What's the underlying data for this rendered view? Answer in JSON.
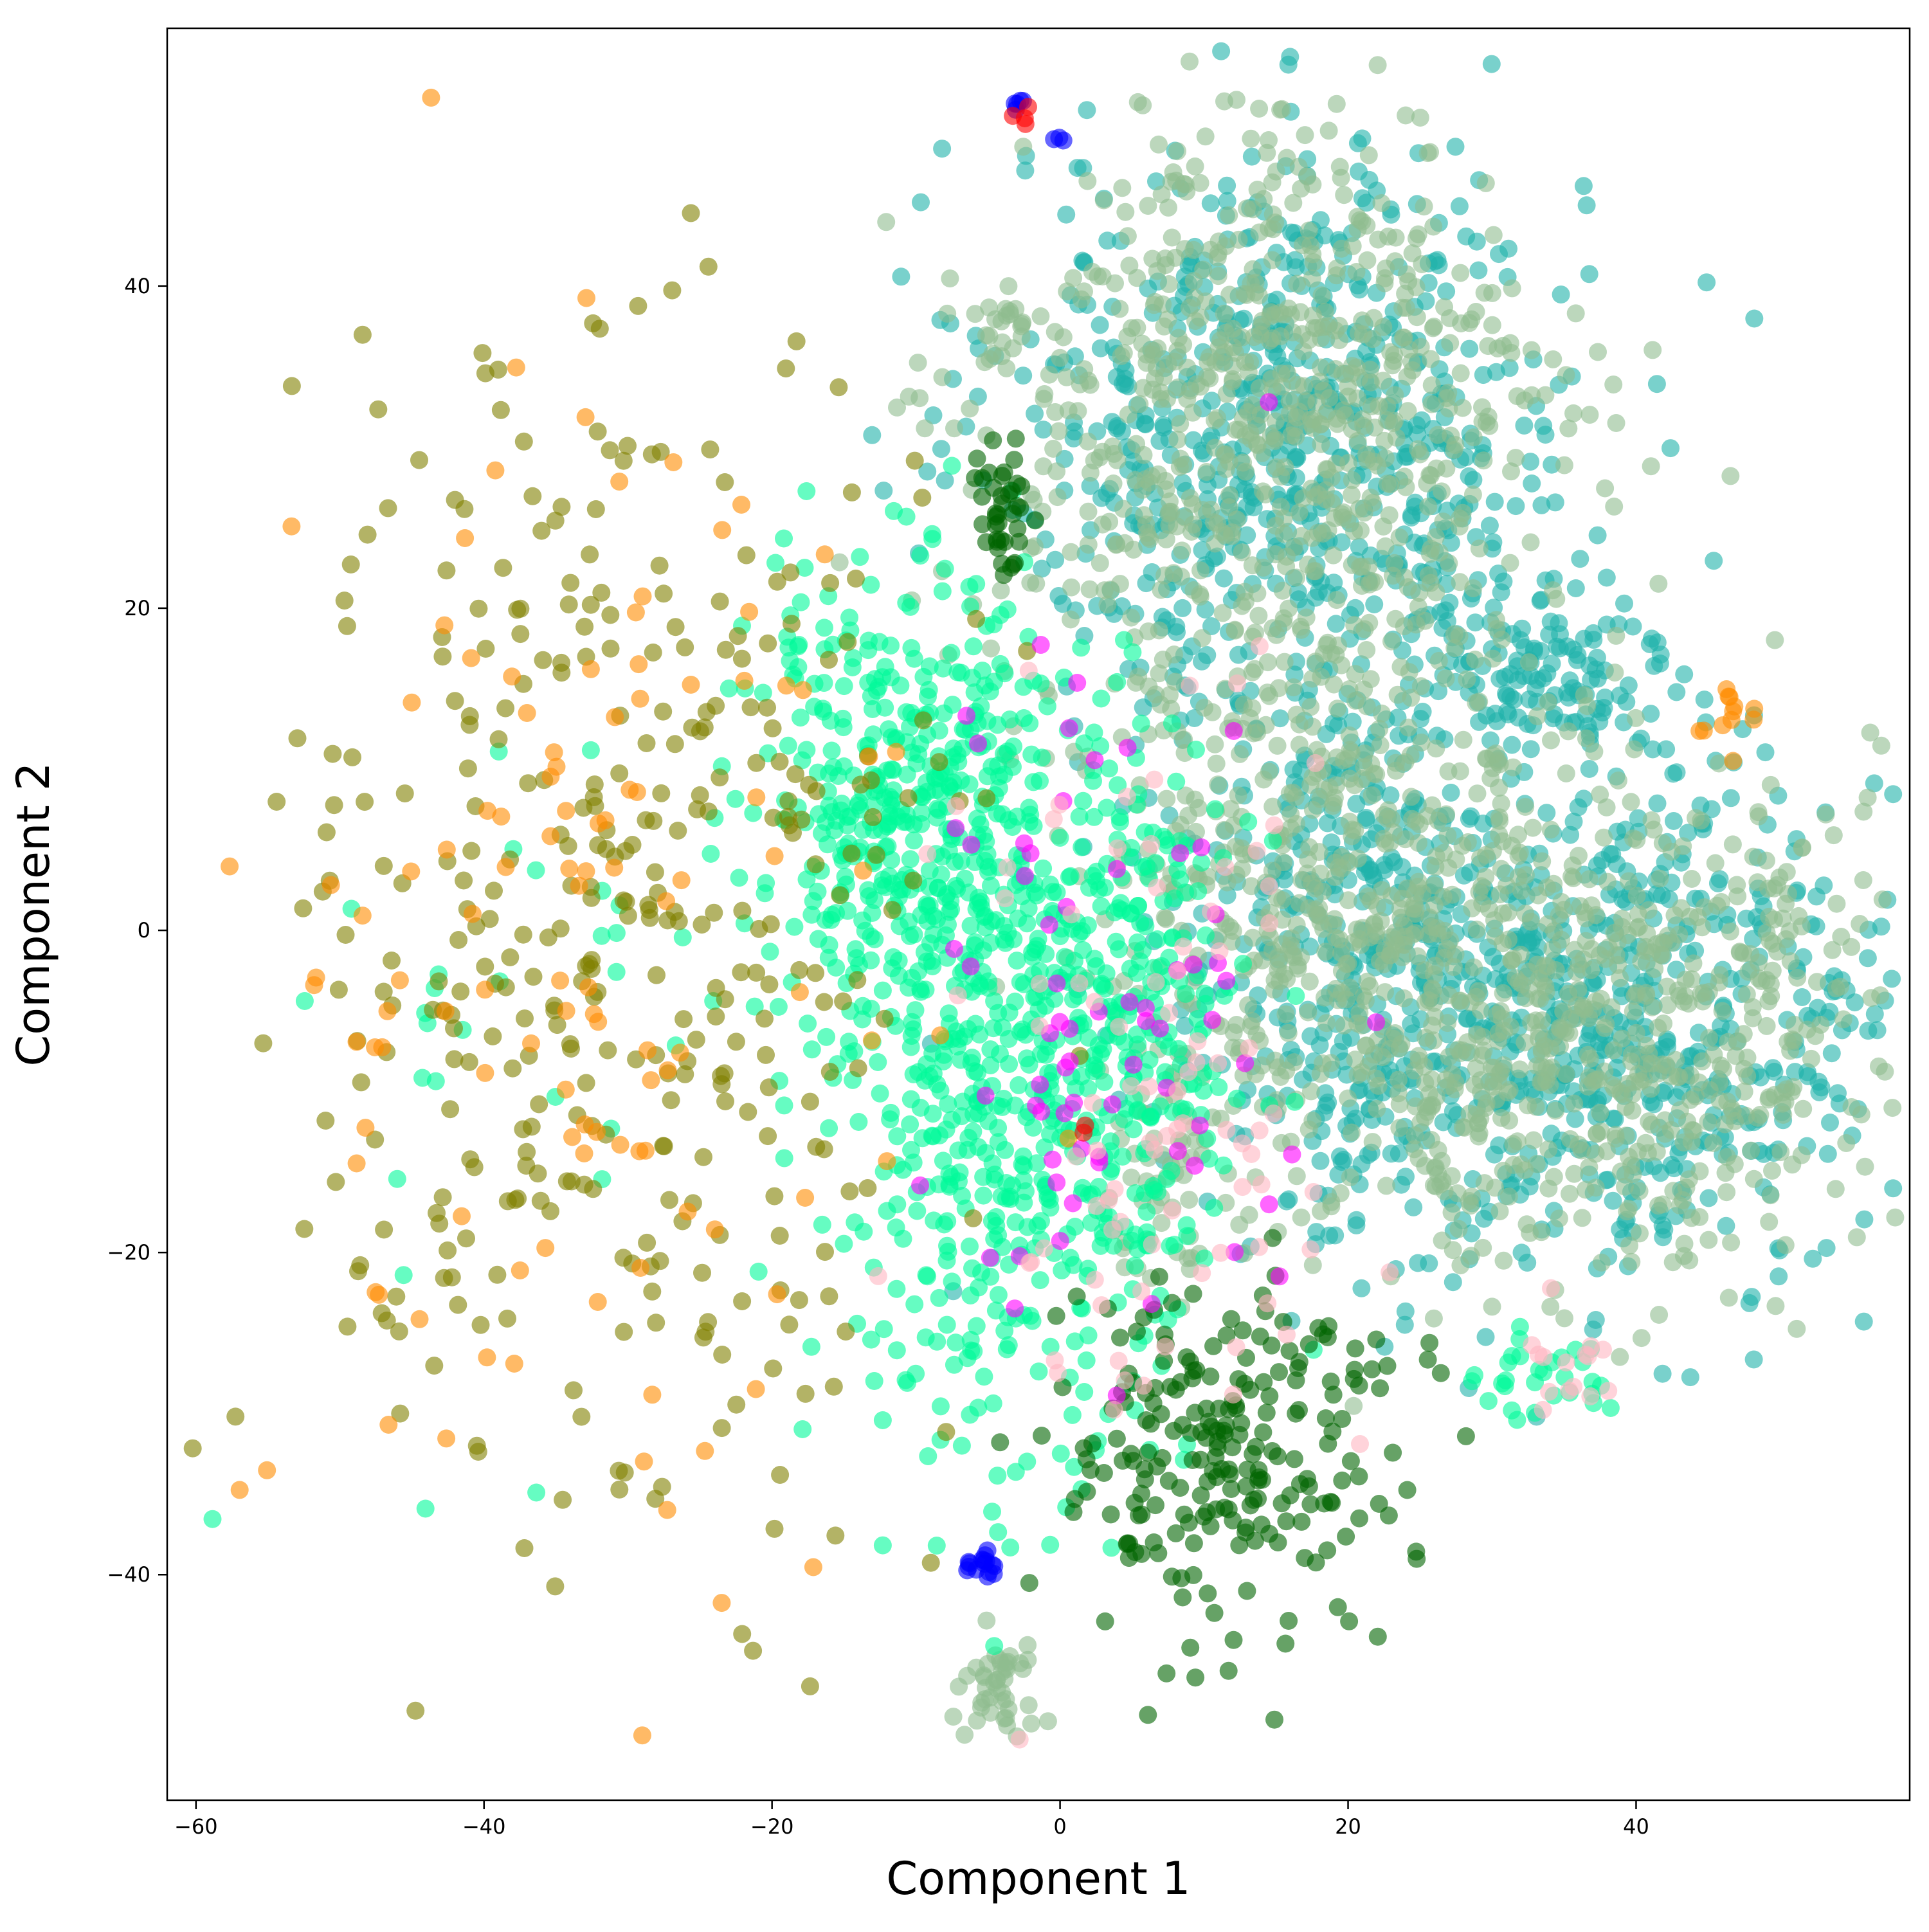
{
  "chart_data": {
    "type": "scatter",
    "title": "",
    "xlabel": "Component 1",
    "ylabel": "Component 2",
    "xlim": [
      -62,
      59
    ],
    "ylim": [
      -54,
      56
    ],
    "xticks": [
      -60,
      -40,
      -20,
      0,
      20,
      40
    ],
    "yticks": [
      -40,
      -20,
      0,
      20,
      40
    ],
    "xtick_labels": [
      "−60",
      "−40",
      "−20",
      "0",
      "20",
      "40"
    ],
    "ytick_labels": [
      "−40",
      "−20",
      "0",
      "20",
      "40"
    ],
    "grid": false,
    "legend": "none",
    "marker_opacity": 0.6,
    "series": [
      {
        "color": "#20b2aa",
        "clusters": [
          {
            "cx": 16,
            "cy": 31,
            "sx": 10,
            "sy": 9,
            "n": 700
          },
          {
            "cx": 38,
            "cy": -6,
            "sx": 10,
            "sy": 8,
            "n": 650
          },
          {
            "cx": 20,
            "cy": 0,
            "sx": 7,
            "sy": 8,
            "n": 350
          },
          {
            "cx": 33,
            "cy": 16,
            "sx": 5,
            "sy": 3,
            "n": 120
          }
        ]
      },
      {
        "color": "#8fbc8f",
        "clusters": [
          {
            "cx": 15,
            "cy": 32,
            "sx": 10,
            "sy": 9,
            "n": 700
          },
          {
            "cx": 37,
            "cy": -6,
            "sx": 10,
            "sy": 8,
            "n": 650
          },
          {
            "cx": 19,
            "cy": 4,
            "sx": 8,
            "sy": 8,
            "n": 450
          },
          {
            "cx": -4,
            "cy": -47,
            "sx": 1.5,
            "sy": 1.5,
            "n": 45
          },
          {
            "cx": -4,
            "cy": 38,
            "sx": 1,
            "sy": 1,
            "n": 18
          },
          {
            "cx": 8,
            "cy": -14,
            "sx": 2,
            "sy": 4,
            "n": 60
          }
        ]
      },
      {
        "color": "#00fa9a",
        "clusters": [
          {
            "cx": -10,
            "cy": 8,
            "sx": 6,
            "sy": 7,
            "n": 420
          },
          {
            "cx": -4,
            "cy": -12,
            "sx": 6,
            "sy": 11,
            "n": 460
          },
          {
            "cx": 5,
            "cy": -5,
            "sx": 4,
            "sy": 8,
            "n": 200
          },
          {
            "cx": 34,
            "cy": -28,
            "sx": 2.5,
            "sy": 1.5,
            "n": 30
          },
          {
            "cx": -38,
            "cy": -8,
            "sx": 8,
            "sy": 12,
            "n": 30
          }
        ]
      },
      {
        "color": "#808000",
        "clusters": [
          {
            "cx": -31,
            "cy": 0,
            "sx": 11,
            "sy": 19,
            "n": 380
          }
        ]
      },
      {
        "color": "#ff8c00",
        "clusters": [
          {
            "cx": -33,
            "cy": 0,
            "sx": 12,
            "sy": 19,
            "n": 120
          },
          {
            "cx": 47,
            "cy": 14,
            "sx": 2,
            "sy": 2.5,
            "n": 12
          }
        ]
      },
      {
        "color": "#006400",
        "clusters": [
          {
            "cx": 11,
            "cy": -33,
            "sx": 6,
            "sy": 6,
            "n": 230
          },
          {
            "cx": -4,
            "cy": 26,
            "sx": 1,
            "sy": 2,
            "n": 40
          }
        ]
      },
      {
        "color": "#ff00ff",
        "clusters": [
          {
            "cx": 4,
            "cy": -6,
            "sx": 7,
            "sy": 11,
            "n": 70
          }
        ]
      },
      {
        "color": "#ffb6c1",
        "clusters": [
          {
            "cx": 6,
            "cy": -12,
            "sx": 7,
            "sy": 12,
            "n": 90
          },
          {
            "cx": 35,
            "cy": -27,
            "sx": 2,
            "sy": 1.5,
            "n": 15
          }
        ]
      },
      {
        "color": "#0000ff",
        "clusters": [
          {
            "cx": -5.5,
            "cy": -39.5,
            "sx": 0.8,
            "sy": 0.6,
            "n": 16
          },
          {
            "cx": -3,
            "cy": 51,
            "sx": 0.3,
            "sy": 0.3,
            "n": 5
          },
          {
            "cx": 0,
            "cy": 49,
            "sx": 0.2,
            "sy": 0.1,
            "n": 3
          }
        ]
      },
      {
        "color": "#ff0000",
        "clusters": [
          {
            "cx": -2.5,
            "cy": 50.5,
            "sx": 0.3,
            "sy": 0.3,
            "n": 4
          },
          {
            "cx": 1,
            "cy": -13,
            "sx": 0.5,
            "sy": 0.5,
            "n": 2
          }
        ]
      }
    ]
  }
}
